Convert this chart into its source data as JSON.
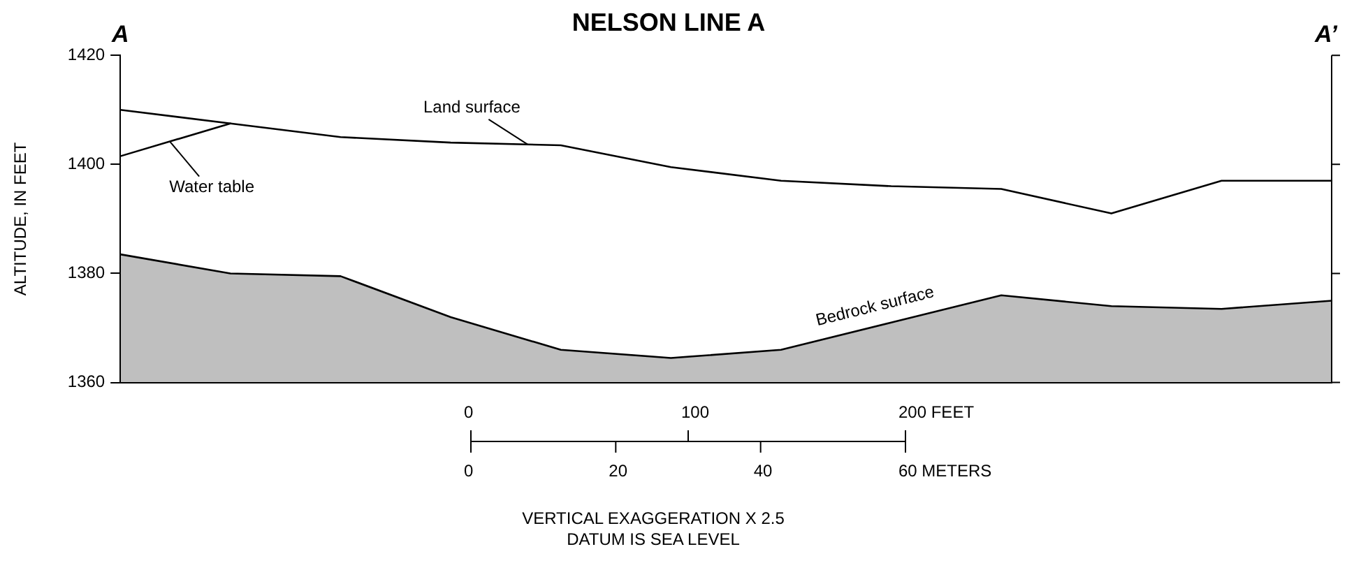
{
  "chart_data": {
    "type": "line",
    "title": "NELSON LINE A",
    "ylabel": "ALTITUDE, IN FEET",
    "categories": [
      null,
      null,
      null,
      null,
      null,
      null,
      null,
      null,
      null,
      null,
      null,
      null
    ],
    "ylim": [
      1360,
      1420
    ],
    "yticks": [
      1360,
      1380,
      1400,
      1420
    ],
    "tick_labels": "y",
    "grid": false,
    "marker": "none",
    "line_style": "solid",
    "series": [
      {
        "name": "Land surface",
        "type": "line",
        "color": "#000000",
        "values": [
          1410,
          1407.5,
          1405,
          1404,
          1403.5,
          1399.5,
          1397,
          1396,
          1395.5,
          1391,
          1397,
          1397
        ]
      },
      {
        "name": "Water table",
        "type": "line",
        "color": "#000000",
        "values": [
          1401.5,
          1407.5,
          null,
          null,
          null,
          null,
          null,
          null,
          null,
          null,
          null,
          null
        ]
      },
      {
        "name": "Bedrock surface",
        "type": "area",
        "color": "#000000",
        "values": [
          1383.5,
          1380,
          1379.5,
          1372,
          1366,
          1364.5,
          1366,
          1371,
          1376,
          1374,
          1373.5,
          1375
        ]
      }
    ],
    "annotations": [
      "A",
      "A’",
      "0",
      "100",
      "200 FEET",
      "0",
      "20",
      "40",
      "60 METERS",
      "VERTICAL EXAGGERATION X 2.5",
      "DATUM IS SEA LEVEL"
    ]
  }
}
